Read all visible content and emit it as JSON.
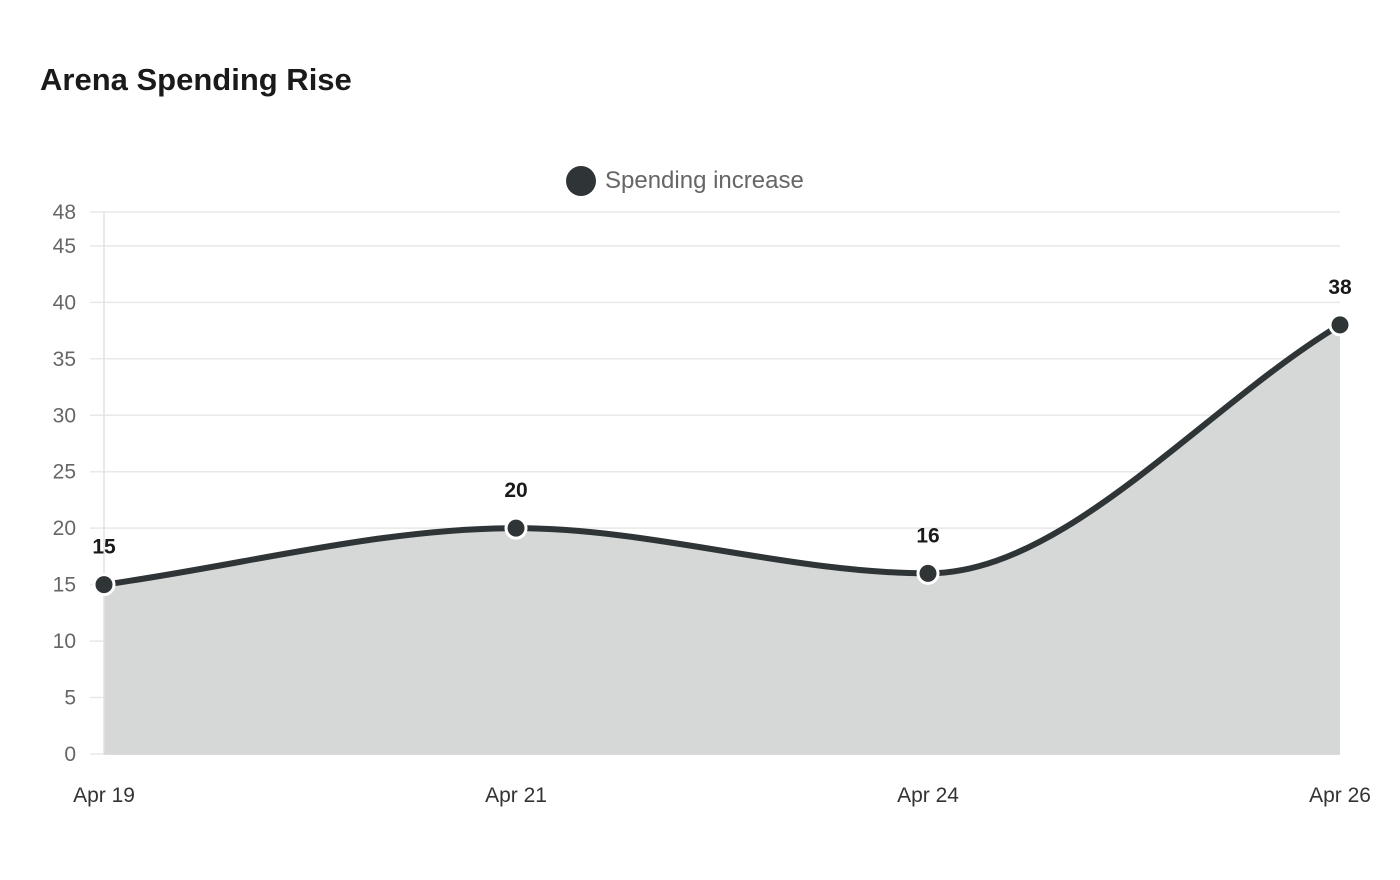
{
  "chart_data": {
    "type": "area",
    "title": "Arena Spending Rise",
    "categories": [
      "Apr 19",
      "Apr 21",
      "Apr 24",
      "Apr 26"
    ],
    "series": [
      {
        "name": "Spending increase",
        "values": [
          15,
          20,
          16,
          38
        ]
      }
    ],
    "y_ticks": [
      0,
      5,
      10,
      15,
      20,
      25,
      30,
      35,
      40,
      45,
      48
    ],
    "ylim": [
      0,
      48
    ],
    "grid": true,
    "legend": "top-center",
    "data_labels": true,
    "colors": {
      "line": "#2f3437",
      "fill": "#d4d6d6",
      "grid": "#e8e8e8"
    }
  }
}
